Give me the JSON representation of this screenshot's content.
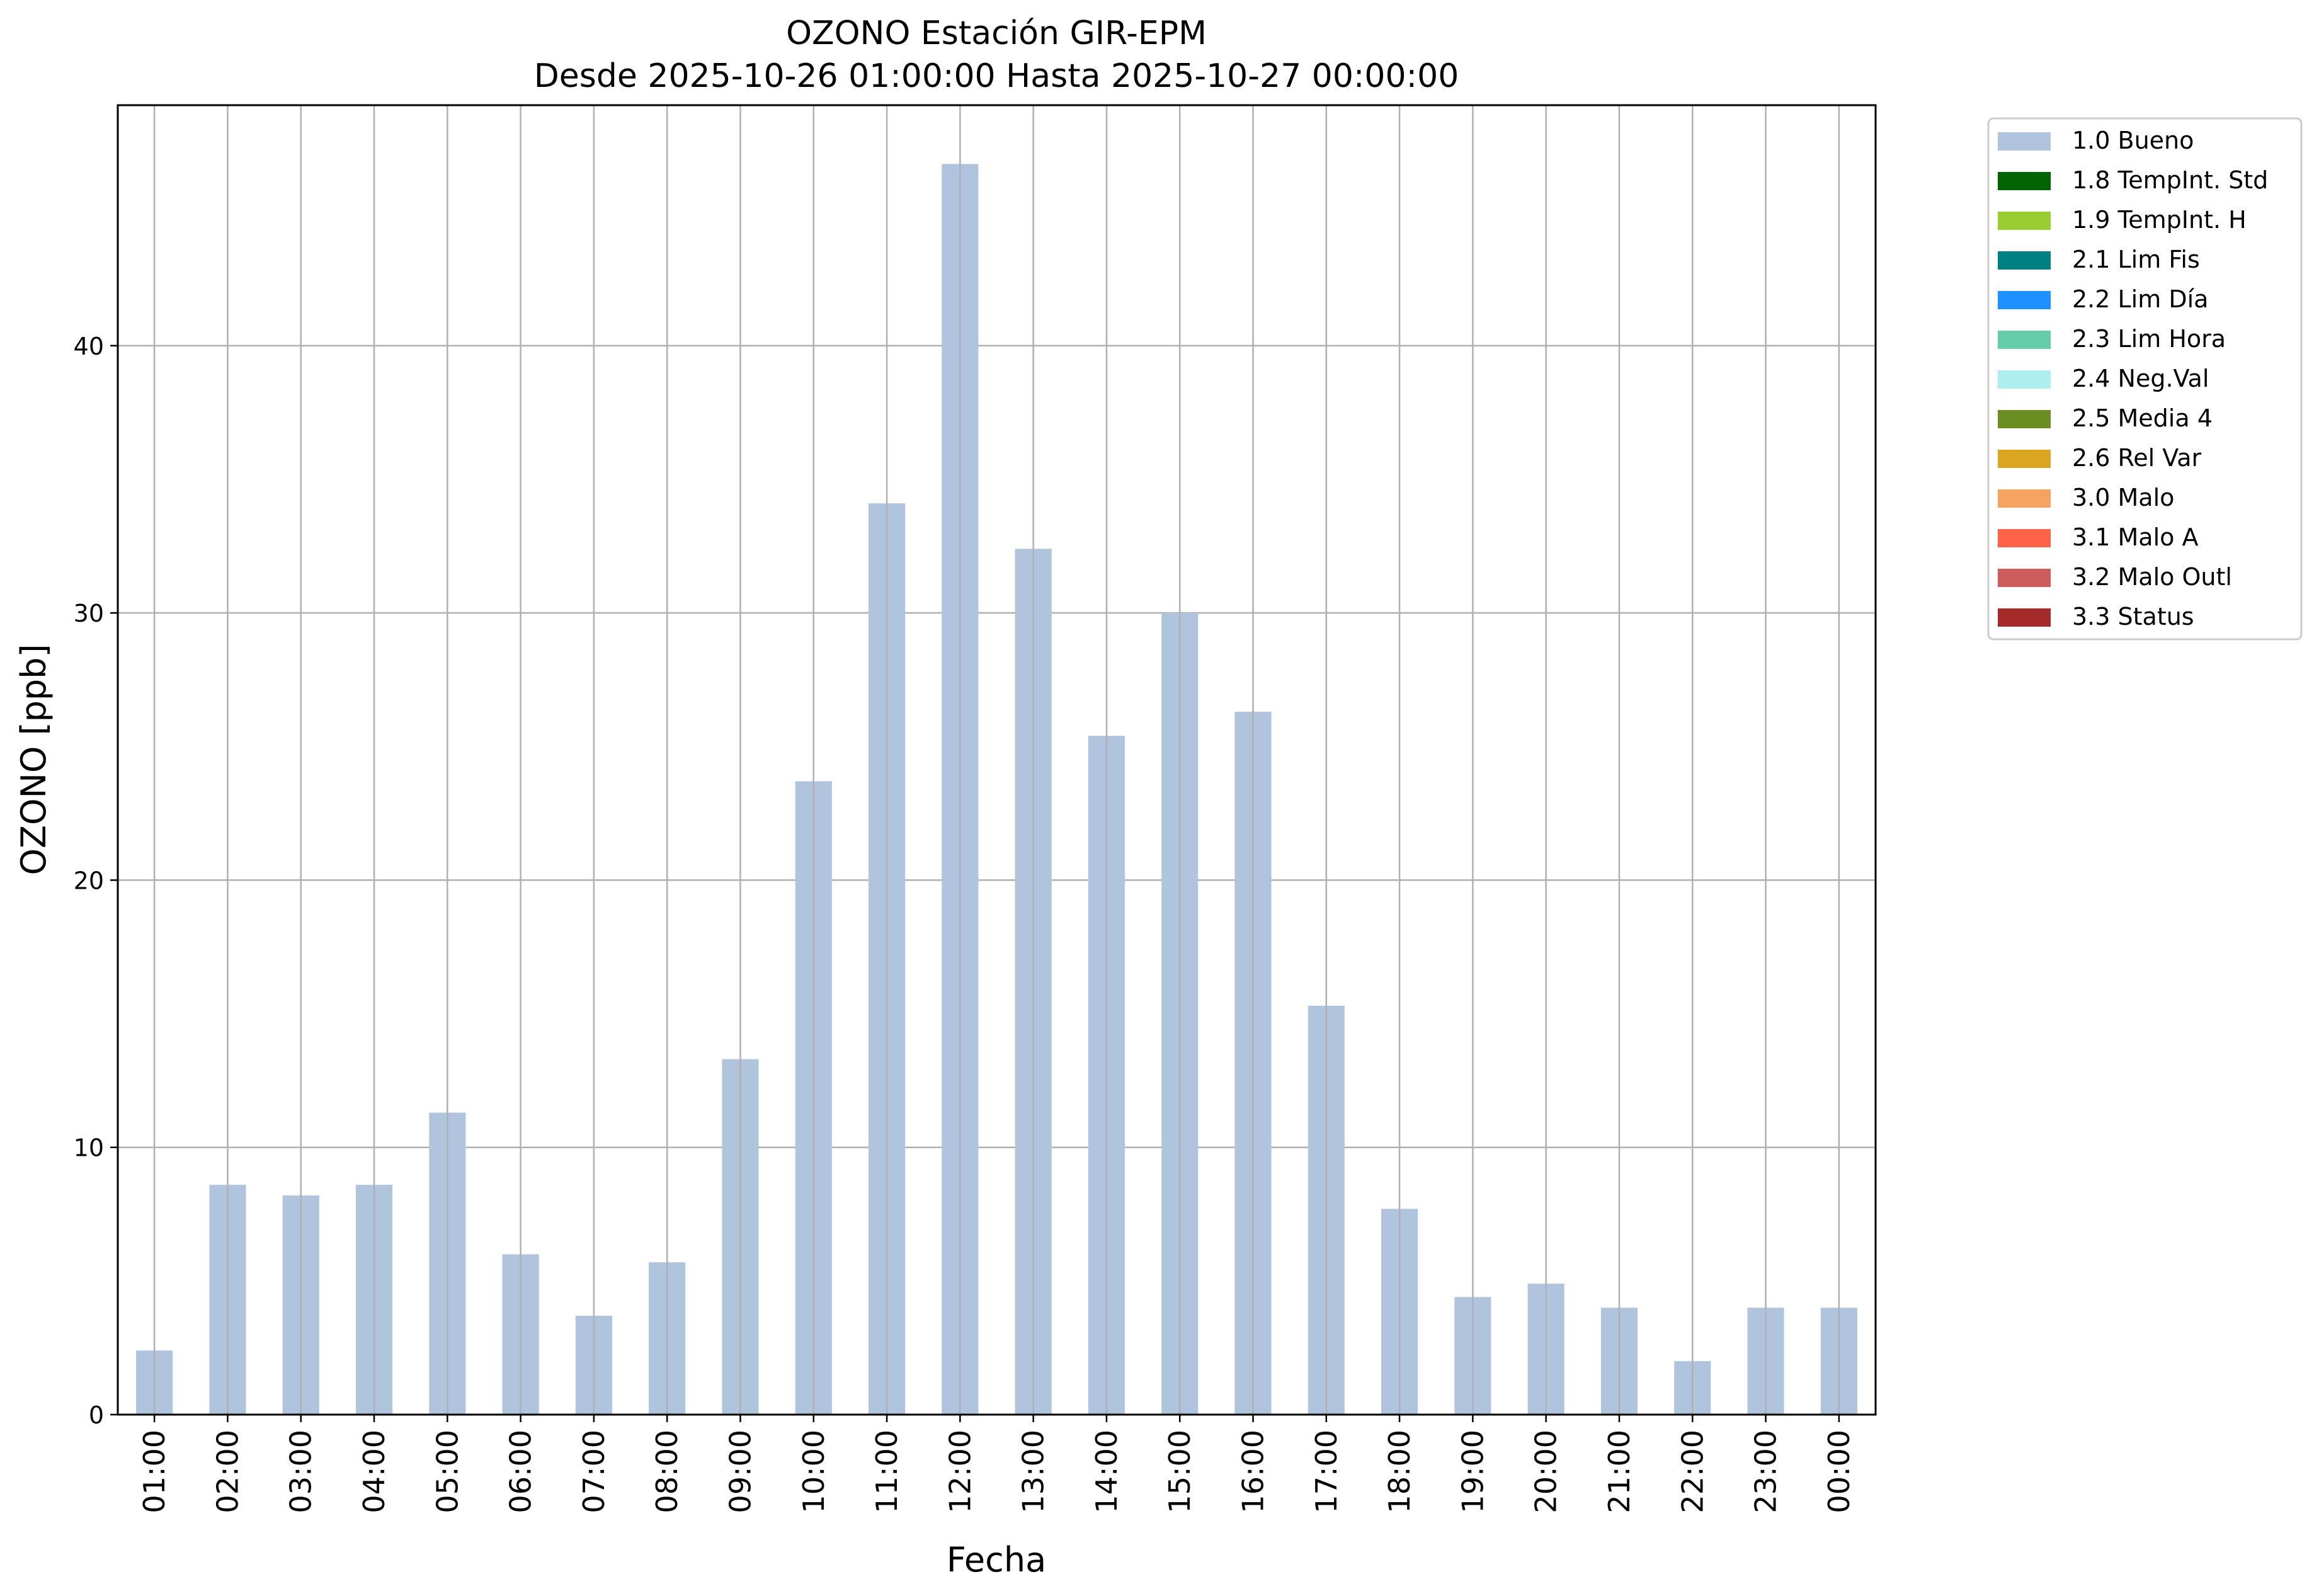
{
  "chart_data": {
    "type": "bar",
    "title": "OZONO Estación GIR-EPM",
    "subtitle": "Desde 2025-10-26 01:00:00 Hasta 2025-10-27 00:00:00",
    "xlabel": "Fecha",
    "ylabel": "OZONO [ppb]",
    "categories": [
      "01:00",
      "02:00",
      "03:00",
      "04:00",
      "05:00",
      "06:00",
      "07:00",
      "08:00",
      "09:00",
      "10:00",
      "11:00",
      "12:00",
      "13:00",
      "14:00",
      "15:00",
      "16:00",
      "17:00",
      "18:00",
      "19:00",
      "20:00",
      "21:00",
      "22:00",
      "23:00",
      "00:00"
    ],
    "series": [
      {
        "name": "1.0 Bueno",
        "color": "#b0c4de",
        "values": [
          2.4,
          8.6,
          8.2,
          8.6,
          11.3,
          6.0,
          3.7,
          5.7,
          13.3,
          23.7,
          34.1,
          46.8,
          32.4,
          25.4,
          30.0,
          26.3,
          15.3,
          7.7,
          4.4,
          4.9,
          4.0,
          2.0,
          4.0,
          4.0
        ]
      }
    ],
    "ylim": [
      0,
      49
    ],
    "yticks": [
      0,
      10,
      20,
      30,
      40
    ],
    "grid": true,
    "legend_position": "outside-top-right",
    "legend": [
      {
        "label": "1.0 Bueno",
        "color": "#b0c4de"
      },
      {
        "label": "1.8 TempInt. Std",
        "color": "#006400"
      },
      {
        "label": "1.9 TempInt. H",
        "color": "#9acd32"
      },
      {
        "label": "2.1 Lim Fis",
        "color": "#008080"
      },
      {
        "label": "2.2 Lim Día",
        "color": "#1e90ff"
      },
      {
        "label": "2.3 Lim Hora",
        "color": "#66cdaa"
      },
      {
        "label": "2.4 Neg.Val",
        "color": "#afeeee"
      },
      {
        "label": "2.5 Media 4",
        "color": "#6b8e23"
      },
      {
        "label": "2.6 Rel Var",
        "color": "#daa520"
      },
      {
        "label": "3.0 Malo",
        "color": "#f4a460"
      },
      {
        "label": "3.1 Malo A",
        "color": "#ff6347"
      },
      {
        "label": "3.2 Malo Outl",
        "color": "#cd5c5c"
      },
      {
        "label": "3.3 Status",
        "color": "#a52a2a"
      }
    ]
  }
}
